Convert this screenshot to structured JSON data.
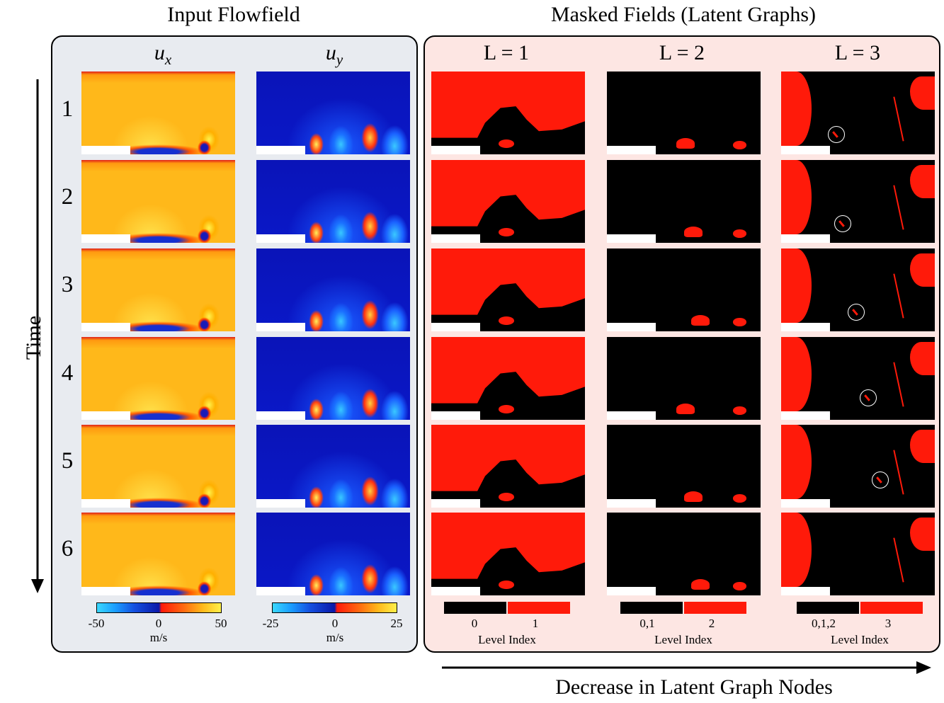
{
  "titles": {
    "left": "Input Flowfield",
    "right": "Masked Fields (Latent Graphs)"
  },
  "left_columns": {
    "ux": {
      "base": "u",
      "sub": "x"
    },
    "uy": {
      "base": "u",
      "sub": "y"
    }
  },
  "right_columns": [
    "L = 1",
    "L = 2",
    "L = 3"
  ],
  "rows": [
    "1",
    "2",
    "3",
    "4",
    "5",
    "6"
  ],
  "time_axis_label": "Time",
  "colorbars": {
    "ux": {
      "ticks": [
        "-50",
        "0",
        "50"
      ],
      "unit": "m/s"
    },
    "uy": {
      "ticks": [
        "-25",
        "0",
        "25"
      ],
      "unit": "m/s"
    }
  },
  "level_legends": [
    {
      "low": "0",
      "high": "1",
      "label": "Level Index"
    },
    {
      "low": "0,1",
      "high": "2",
      "label": "Level Index"
    },
    {
      "low": "0,1,2",
      "high": "3",
      "label": "Level Index"
    }
  ],
  "bottom_arrow_label": "Decrease in Latent Graph Nodes",
  "colors": {
    "mask_active": "#ff1a0a",
    "mask_inactive": "#000000",
    "left_panel_bg": "#e8ebf0",
    "right_panel_bg": "#fde6e3"
  }
}
